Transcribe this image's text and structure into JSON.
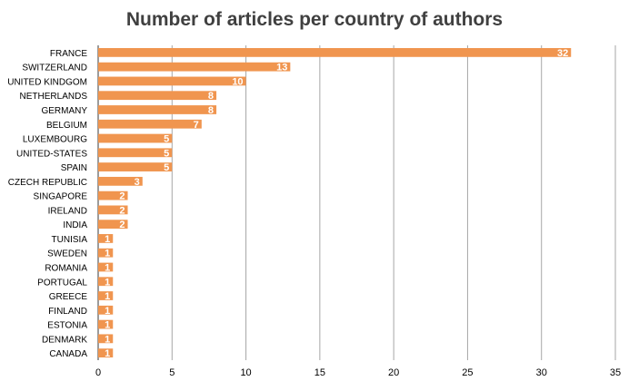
{
  "chart_data": {
    "type": "bar",
    "orientation": "horizontal",
    "title": "Number of articles per country of authors",
    "xlabel": "",
    "ylabel": "",
    "xlim": [
      0,
      35
    ],
    "xticks": [
      0,
      5,
      10,
      15,
      20,
      25,
      30,
      35
    ],
    "grid": true,
    "legend": "none",
    "categories": [
      "FRANCE",
      "SWITZERLAND",
      "UNITED KINDGOM",
      "NETHERLANDS",
      "GERMANY",
      "BELGIUM",
      "LUXEMBOURG",
      "UNITED-STATES",
      "SPAIN",
      "CZECH REPUBLIC",
      "SINGAPORE",
      "IRELAND",
      "INDIA",
      "TUNISIA",
      "SWEDEN",
      "ROMANIA",
      "PORTUGAL",
      "GREECE",
      "FINLAND",
      "ESTONIA",
      "DENMARK",
      "CANADA"
    ],
    "values": [
      32,
      13,
      10,
      8,
      8,
      7,
      5,
      5,
      5,
      3,
      2,
      2,
      2,
      1,
      1,
      1,
      1,
      1,
      1,
      1,
      1,
      1
    ],
    "colors": {
      "bar": "#F0954F",
      "grid": "#A6A6A6",
      "axis": "#595959",
      "label": "#ffffff",
      "title": "#404040",
      "text": "#000000"
    }
  }
}
